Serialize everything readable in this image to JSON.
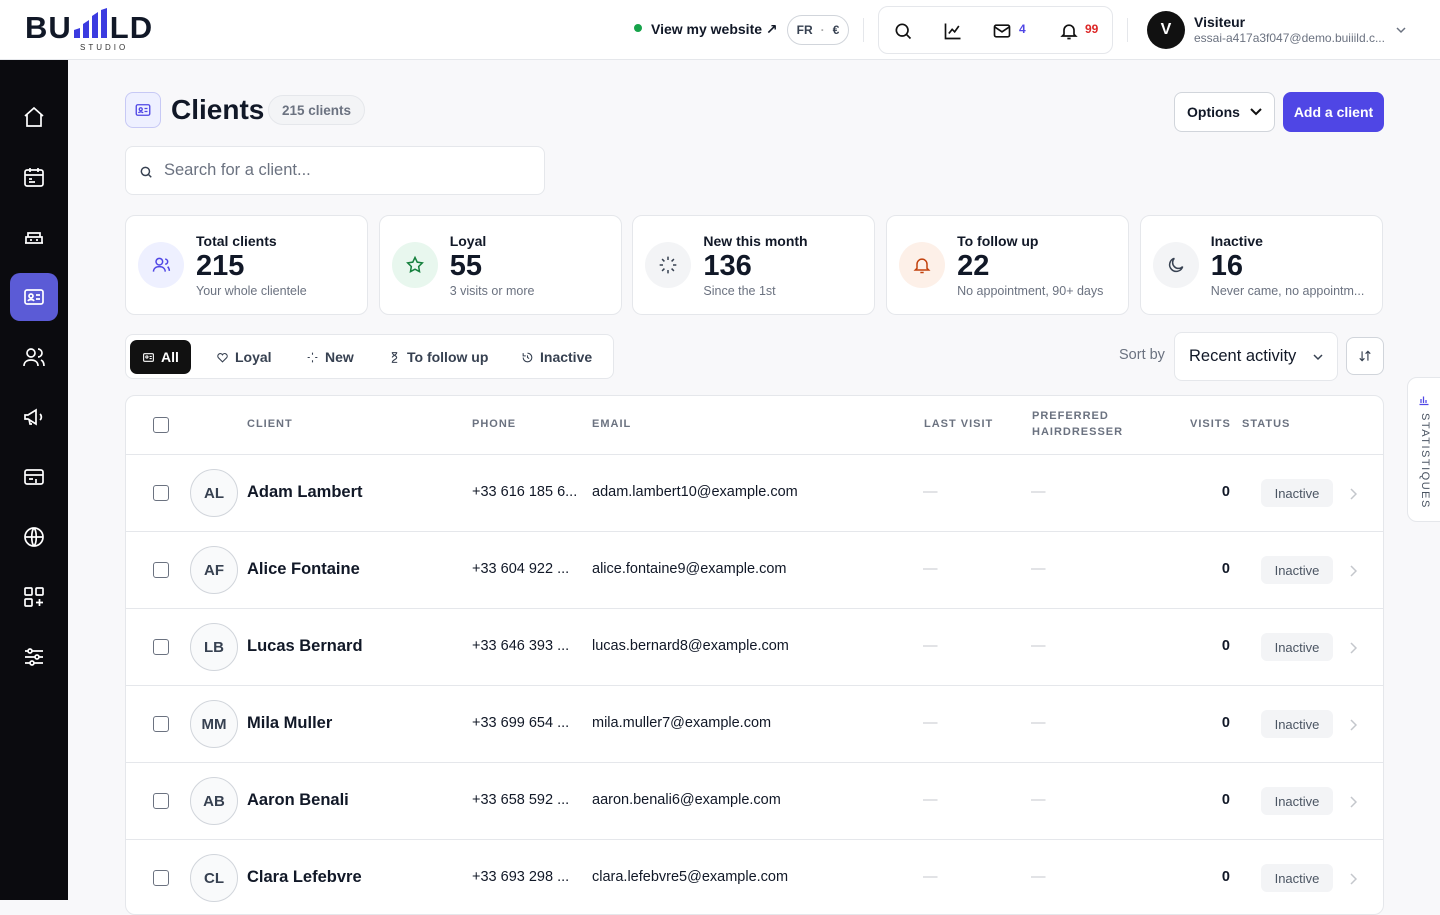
{
  "header": {
    "logo_left": "BU",
    "logo_right": "LD",
    "logo_sub": "STUDIO",
    "view_website": "View my website ↗",
    "locale": "FR",
    "currency": "€",
    "mail_count": 4,
    "notif_count": 99,
    "user_initial": "V",
    "user_name": "Visiteur",
    "user_email": "essai-a417a3f047@demo.buiiild.c..."
  },
  "page": {
    "title": "Clients",
    "count_badge": "215 clients",
    "options": "Options",
    "add_button": "Add a client",
    "search_placeholder": "Search for a client..."
  },
  "stats": [
    {
      "label": "Total clients",
      "value": 215,
      "sub": "Your whole clientele"
    },
    {
      "label": "Loyal",
      "value": 55,
      "sub": "3 visits or more"
    },
    {
      "label": "New this month",
      "value": 136,
      "sub": "Since the 1st"
    },
    {
      "label": "To follow up",
      "value": 22,
      "sub": "No appointment, 90+ days"
    },
    {
      "label": "Inactive",
      "value": 16,
      "sub": "Never came, no appointm..."
    }
  ],
  "filters": {
    "tabs": [
      "All",
      "Loyal",
      "New",
      "To follow up",
      "Inactive"
    ],
    "sort_label": "Sort by",
    "sort_value": "Recent activity"
  },
  "table": {
    "headers": [
      "CLIENT",
      "PHONE",
      "EMAIL",
      "LAST VISIT",
      "PREFERRED HAIRDRESSER",
      "VISITS",
      "STATUS"
    ],
    "rows": [
      {
        "initials": "AL",
        "name": "Adam Lambert",
        "phone": "+33 616 185 6...",
        "email": "adam.lambert10@example.com",
        "last_visit": "—",
        "hairdresser": "—",
        "visits": 0,
        "status": "Inactive"
      },
      {
        "initials": "AF",
        "name": "Alice Fontaine",
        "phone": "+33 604 922 ...",
        "email": "alice.fontaine9@example.com",
        "last_visit": "—",
        "hairdresser": "—",
        "visits": 0,
        "status": "Inactive"
      },
      {
        "initials": "LB",
        "name": "Lucas Bernard",
        "phone": "+33 646 393 ...",
        "email": "lucas.bernard8@example.com",
        "last_visit": "—",
        "hairdresser": "—",
        "visits": 0,
        "status": "Inactive"
      },
      {
        "initials": "MM",
        "name": "Mila Muller",
        "phone": "+33 699 654 ...",
        "email": "mila.muller7@example.com",
        "last_visit": "—",
        "hairdresser": "—",
        "visits": 0,
        "status": "Inactive"
      },
      {
        "initials": "AB",
        "name": "Aaron Benali",
        "phone": "+33 658 592 ...",
        "email": "aaron.benali6@example.com",
        "last_visit": "—",
        "hairdresser": "—",
        "visits": 0,
        "status": "Inactive"
      },
      {
        "initials": "CL",
        "name": "Clara Lefebvre",
        "phone": "+33 693 298 ...",
        "email": "clara.lefebvre5@example.com",
        "last_visit": "—",
        "hairdresser": "—",
        "visits": 0,
        "status": "Inactive"
      }
    ]
  },
  "side_tab": "STATISTIQUES"
}
